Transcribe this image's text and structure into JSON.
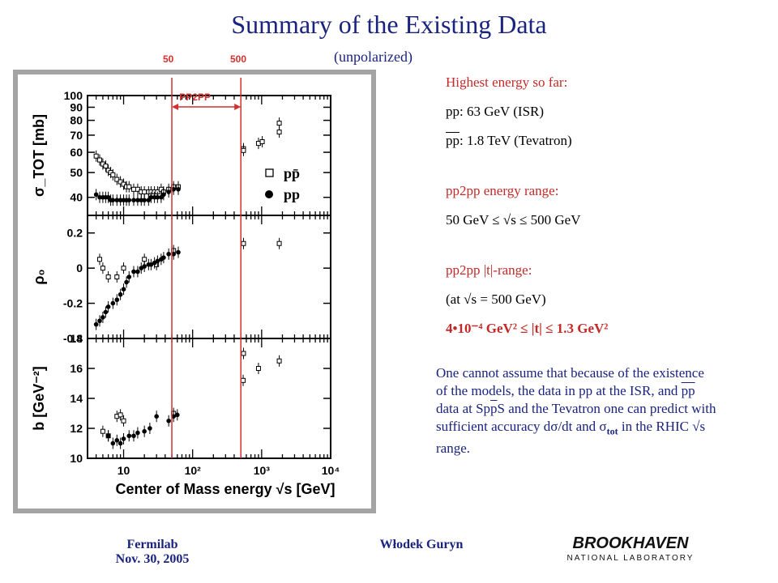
{
  "slide": {
    "title": "Summary of the Existing Data",
    "subtitle": "(unpolarized)",
    "mark_50": "50",
    "mark_500": "500",
    "pp2pp_band_label": "PP2PP"
  },
  "info": {
    "highest": "Highest energy so far:",
    "pp_isr": "pp: 63 GeV (ISR)",
    "ppbar_prefix": "pp",
    "ppbar_rest": ": 1.8 TeV (Tevatron)",
    "range_title": "pp2pp energy range:",
    "range_value": "50 GeV  ≤  √s  ≤  500 GeV",
    "trange_title": "pp2pp |t|-range:",
    "trange_cond": "(at √s = 500 GeV)",
    "trange_value": "4•10⁻⁴ GeV²  ≤  |t|  ≤  1.3 GeV²"
  },
  "paragraph": {
    "p1": "One cannot assume that because of the existence of the models, the data in pp at the ISR, and ",
    "p_pp": "pp",
    "p2": " data at Sp",
    "p_ps": "p",
    "p3": "S and the Tevatron one can predict with sufficient accuracy dσ/dt and σ",
    "p_tot": "tot",
    "p4": " in the RHIC √s range."
  },
  "footer": {
    "left1": "Fermilab",
    "left2": "Nov. 30, 2005",
    "center": "Włodek Guryn",
    "logo_word": "BROOKHAVEN",
    "logo_sub": "NATIONAL LABORATORY"
  },
  "colors": {
    "title": "#1a237e",
    "accent_red": "#d32f2f",
    "panel_gray": "#a4a4a4"
  },
  "chart_data": [
    {
      "type": "scatter",
      "name": "sigma_tot",
      "ylabel": "σ_TOT [mb]",
      "x_log": true,
      "xlim": [
        3,
        10000
      ],
      "ylim": [
        34,
        100
      ],
      "y_log": true,
      "yticks": [
        40,
        50,
        60,
        70,
        80,
        90,
        100
      ],
      "legend": [
        {
          "marker": "open-square",
          "label": "pp̄"
        },
        {
          "marker": "filled-circle",
          "label": "pp"
        }
      ],
      "legend_position": "right",
      "series": [
        {
          "name": "pp̄",
          "marker": "open-square",
          "x": [
            4.0,
            4.5,
            5.0,
            5.5,
            6.0,
            6.5,
            7.0,
            8.0,
            9.0,
            10,
            11,
            12,
            14,
            16,
            18,
            20,
            23,
            25,
            28,
            31,
            35,
            38,
            45,
            53,
            62,
            546,
            546,
            900,
            1020,
            1800,
            1800
          ],
          "y": [
            58,
            56,
            54,
            53,
            51,
            50,
            49,
            47,
            46,
            45,
            44,
            44,
            43,
            43,
            42,
            42,
            42,
            42,
            42,
            42,
            43,
            42,
            43,
            44,
            44,
            62,
            61,
            65,
            66,
            72,
            78
          ]
        },
        {
          "name": "pp",
          "marker": "filled-circle",
          "x": [
            4.0,
            4.5,
            5.0,
            5.5,
            6.0,
            6.5,
            7.0,
            8.0,
            9.0,
            10,
            11,
            12,
            14,
            16,
            18,
            20,
            23,
            25,
            28,
            31,
            35,
            38,
            45,
            53,
            62
          ],
          "y": [
            41,
            40,
            40,
            40,
            40,
            39,
            39,
            39,
            39,
            39,
            39,
            39,
            39,
            39,
            39,
            39,
            39,
            40,
            40,
            40,
            40,
            41,
            42,
            43,
            43
          ]
        }
      ]
    },
    {
      "type": "scatter",
      "name": "rho",
      "ylabel": "ρ₀",
      "x_log": true,
      "xlim": [
        3,
        10000
      ],
      "ylim": [
        -0.4,
        0.3
      ],
      "yticks": [
        -0.4,
        -0.2,
        0,
        0.2
      ],
      "series": [
        {
          "name": "pp̄",
          "marker": "open-square",
          "x": [
            4.5,
            5.0,
            6.0,
            8.0,
            10,
            20,
            30,
            53,
            546,
            1800
          ],
          "y": [
            0.05,
            0.0,
            -0.05,
            -0.05,
            0.0,
            0.05,
            0.02,
            0.1,
            0.14,
            0.14
          ]
        },
        {
          "name": "pp",
          "marker": "filled-circle",
          "x": [
            4.0,
            4.5,
            5.0,
            5.5,
            6.0,
            7.0,
            8.0,
            9.0,
            10,
            11,
            12,
            14,
            16,
            18,
            20,
            23,
            25,
            28,
            31,
            35,
            38,
            45,
            53,
            62
          ],
          "y": [
            -0.32,
            -0.3,
            -0.28,
            -0.25,
            -0.22,
            -0.2,
            -0.18,
            -0.15,
            -0.12,
            -0.08,
            -0.05,
            -0.02,
            -0.02,
            0.0,
            0.01,
            0.02,
            0.02,
            0.03,
            0.04,
            0.05,
            0.06,
            0.08,
            0.08,
            0.09
          ]
        }
      ]
    },
    {
      "type": "scatter",
      "name": "slope_b",
      "ylabel": "b [GeV⁻²]",
      "xlabel": "Center of Mass energy √s [GeV]",
      "x_log": true,
      "xlim": [
        3,
        10000
      ],
      "ylim": [
        10,
        18
      ],
      "yticks": [
        10,
        12,
        14,
        16,
        18
      ],
      "xticks": [
        "10",
        "10²",
        "10³",
        "10⁴"
      ],
      "series": [
        {
          "name": "pp̄",
          "marker": "open-square",
          "x": [
            5.0,
            6.0,
            8.0,
            9.0,
            10,
            53,
            540,
            546,
            900,
            1800
          ],
          "y": [
            11.8,
            11.5,
            12.8,
            12.9,
            12.5,
            13.0,
            15.2,
            17.0,
            16.0,
            16.5
          ]
        },
        {
          "name": "pp",
          "marker": "filled-circle",
          "x": [
            6.0,
            7.0,
            8.0,
            9.0,
            10,
            12,
            14,
            16,
            20,
            24,
            30,
            45,
            53,
            60
          ],
          "y": [
            11.5,
            11.0,
            11.2,
            11.0,
            11.3,
            11.5,
            11.5,
            11.7,
            11.8,
            12.0,
            12.8,
            12.5,
            12.8,
            12.9
          ]
        }
      ]
    }
  ]
}
